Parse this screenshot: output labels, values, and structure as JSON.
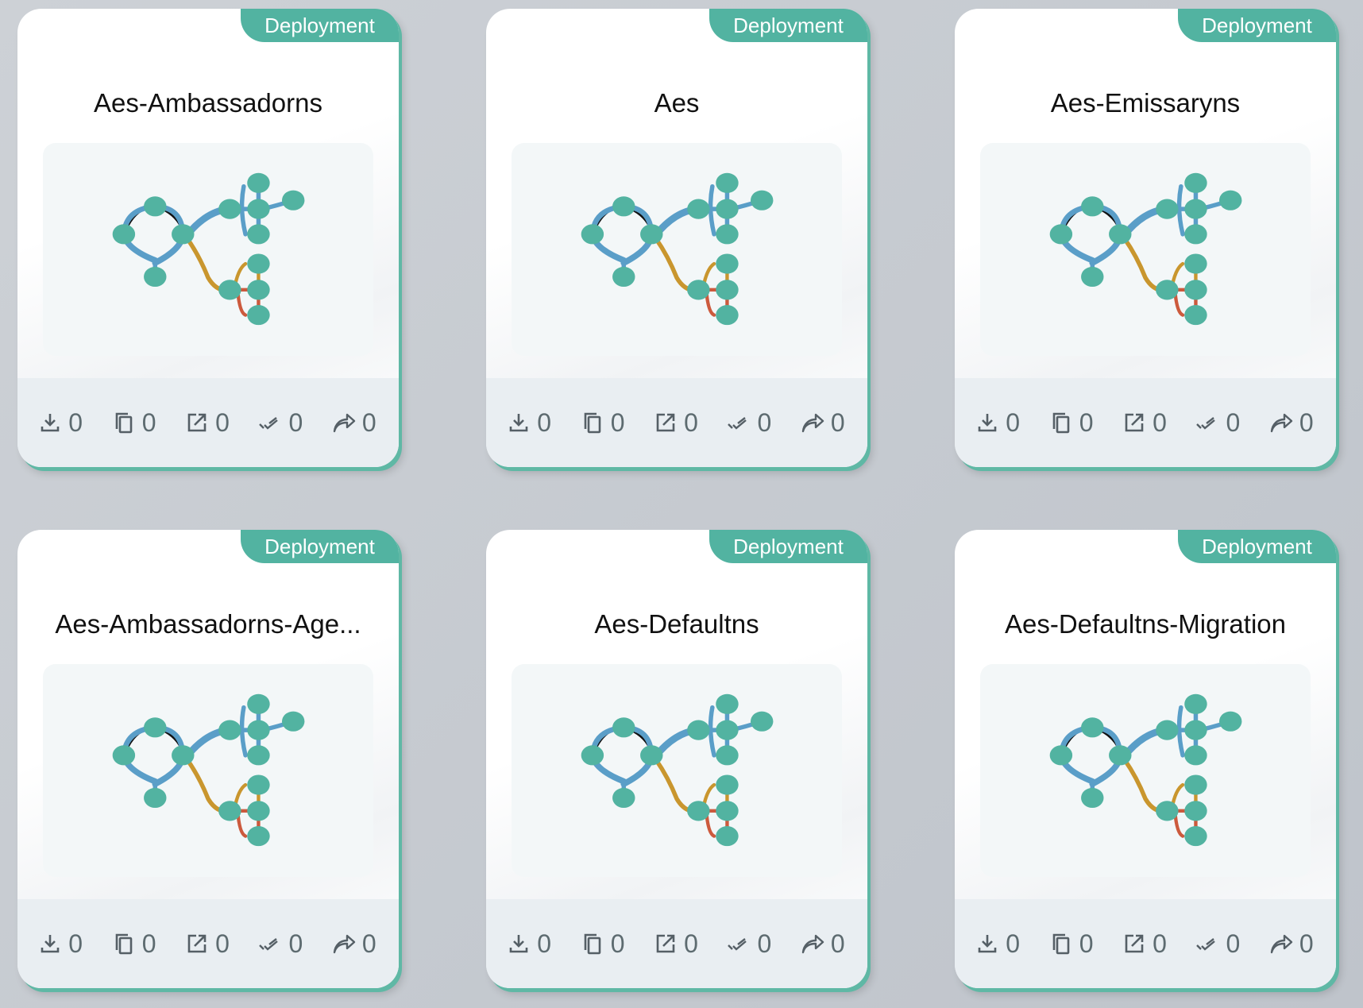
{
  "colors": {
    "accent": "#52b3a1",
    "edge_blue": "#5a9ec8",
    "edge_gold": "#c9962e",
    "edge_red": "#cc5a3d",
    "icon": "#555f66"
  },
  "stat_icons": [
    "download-icon",
    "copy-icon",
    "open-external-icon",
    "double-check-icon",
    "share-icon"
  ],
  "cards": [
    {
      "tag": "Deployment",
      "title": "Aes-Ambassadorns",
      "stats": [
        "0",
        "0",
        "0",
        "0",
        "0"
      ]
    },
    {
      "tag": "Deployment",
      "title": "Aes",
      "stats": [
        "0",
        "0",
        "0",
        "0",
        "0"
      ]
    },
    {
      "tag": "Deployment",
      "title": "Aes-Emissaryns",
      "stats": [
        "0",
        "0",
        "0",
        "0",
        "0"
      ]
    },
    {
      "tag": "Deployment",
      "title": "Aes-Ambassadorns-Age...",
      "stats": [
        "0",
        "0",
        "0",
        "0",
        "0"
      ]
    },
    {
      "tag": "Deployment",
      "title": "Aes-Defaultns",
      "stats": [
        "0",
        "0",
        "0",
        "0",
        "0"
      ]
    },
    {
      "tag": "Deployment",
      "title": "Aes-Defaultns-Migration",
      "stats": [
        "0",
        "0",
        "0",
        "0",
        "0"
      ]
    }
  ]
}
